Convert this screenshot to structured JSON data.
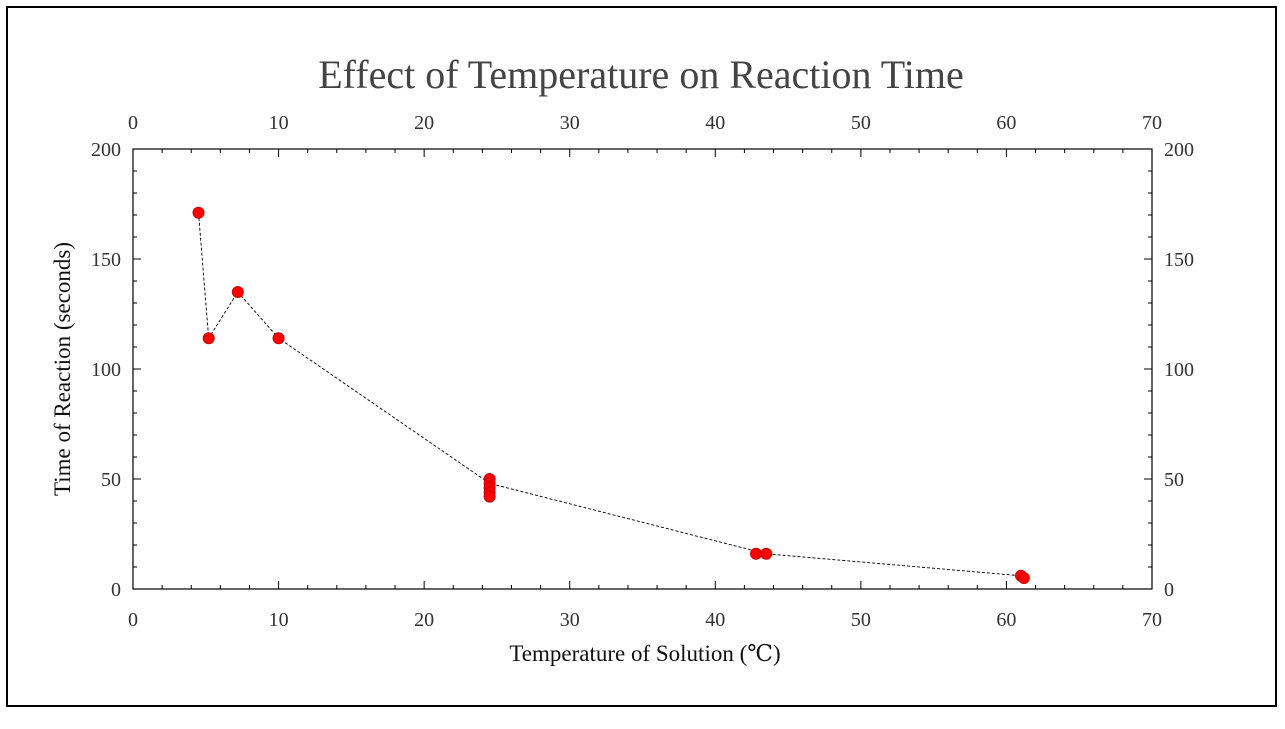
{
  "chart_data": {
    "type": "scatter",
    "title": "Effect of Temperature on Reaction Time",
    "xlabel": "Temperature of Solution (℃)",
    "ylabel": "Time of Reaction (seconds)",
    "xlim": [
      0,
      70
    ],
    "ylim": [
      0,
      200
    ],
    "x_ticks": [
      0,
      10,
      20,
      30,
      40,
      50,
      60,
      70
    ],
    "y_ticks": [
      0,
      50,
      100,
      150,
      200
    ],
    "grid": false,
    "mirror_axes": true,
    "connecting_line": "dashed",
    "series": [
      {
        "marker": "circle",
        "points": [
          {
            "x": 4.5,
            "y": 171
          },
          {
            "x": 5.2,
            "y": 114
          },
          {
            "x": 7.2,
            "y": 135
          },
          {
            "x": 10.0,
            "y": 114
          },
          {
            "x": 24.5,
            "y": 50
          },
          {
            "x": 24.5,
            "y": 48
          },
          {
            "x": 24.5,
            "y": 46
          },
          {
            "x": 24.5,
            "y": 44
          },
          {
            "x": 24.5,
            "y": 42
          },
          {
            "x": 42.8,
            "y": 16
          },
          {
            "x": 43.5,
            "y": 16
          },
          {
            "x": 61.0,
            "y": 6
          },
          {
            "x": 61.2,
            "y": 5
          }
        ],
        "line_points": [
          {
            "x": 4.5,
            "y": 171
          },
          {
            "x": 5.2,
            "y": 114
          },
          {
            "x": 7.2,
            "y": 135
          },
          {
            "x": 10.0,
            "y": 114
          },
          {
            "x": 24.5,
            "y": 48
          },
          {
            "x": 43.5,
            "y": 16
          },
          {
            "x": 61.0,
            "y": 6
          }
        ]
      }
    ]
  },
  "colors": {
    "marker": "#ff0000",
    "line": "#000000",
    "axis": "#000000"
  }
}
